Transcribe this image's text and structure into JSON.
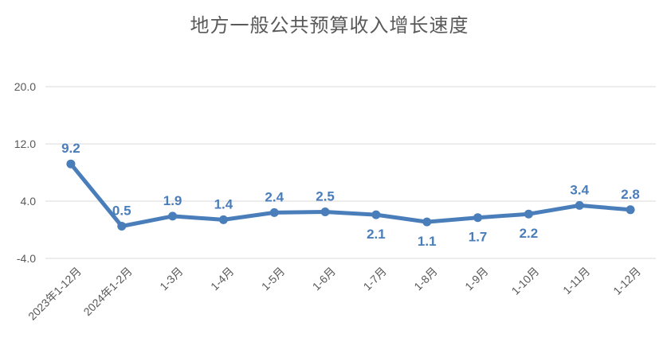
{
  "chart_data": {
    "type": "line",
    "title": "地方一般公共预算收入增长速度",
    "categories": [
      "2023年1-12月",
      "2024年1-2月",
      "1-3月",
      "1-4月",
      "1-5月",
      "1-6月",
      "1-7月",
      "1-8月",
      "1-9月",
      "1-10月",
      "1-11月",
      "1-12月"
    ],
    "series": [
      {
        "values": [
          9.2,
          0.5,
          1.9,
          1.4,
          2.4,
          2.5,
          2.1,
          1.1,
          1.7,
          2.2,
          3.4,
          2.8
        ]
      }
    ],
    "data_labels": [
      "9.2",
      "0.5",
      "1.9",
      "1.4",
      "2.4",
      "2.5",
      "2.1",
      "1.1",
      "1.7",
      "2.2",
      "3.4",
      "2.8"
    ],
    "data_label_positions": [
      "above",
      "above",
      "above",
      "above",
      "above",
      "above",
      "below",
      "below",
      "below",
      "below",
      "above",
      "above"
    ],
    "ylim": [
      -4.0,
      20.0
    ],
    "yticks": [
      -4.0,
      4.0,
      12.0,
      20.0
    ],
    "ytick_labels": [
      "-4.0",
      "4.0",
      "12.0",
      "20.0"
    ],
    "xlabel": "",
    "ylabel": "",
    "grid": true,
    "legend": "none",
    "colors": {
      "line": "#4a7ebb",
      "grid": "#d9d9d9",
      "text": "#595959"
    }
  }
}
